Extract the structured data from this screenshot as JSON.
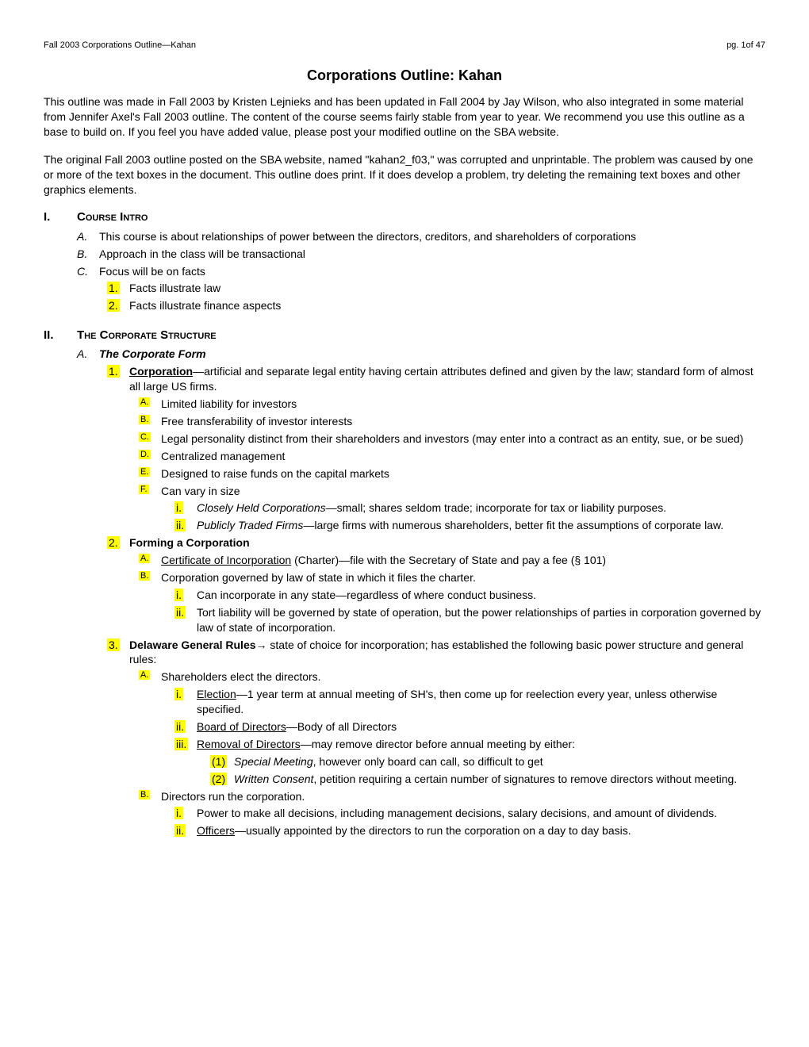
{
  "header": {
    "left": "Fall 2003 Corporations Outline—Kahan",
    "right": "pg. 1of 47"
  },
  "title": "Corporations Outline: Kahan",
  "intro": {
    "p1": "This outline was made in Fall 2003 by Kristen Lejnieks and has been updated in Fall 2004 by Jay Wilson, who also integrated in some material from Jennifer Axel's Fall 2003 outline.  The content of the course seems fairly stable from year to year.  We recommend you use this outline as a base to build on.  If you feel you have added value, please post your modified outline on the SBA website.",
    "p2": "The original Fall 2003 outline posted on the SBA website, named \"kahan2_f03,\" was corrupted and unprintable.  The problem was caused by one or more of the text boxes in the document.  This outline does print.  If it does develop a problem, try deleting the remaining text boxes and other graphics elements."
  },
  "s1": {
    "roman": "I.",
    "title": "Course Intro",
    "a": {
      "m": "A.",
      "t": "This course is about relationships of power between the directors, creditors, and shareholders of corporations"
    },
    "b": {
      "m": "B.",
      "t": "Approach in the class will be transactional"
    },
    "c": {
      "m": "C.",
      "t": "Focus will be on facts"
    },
    "c1": {
      "m": "1.",
      "t": "Facts illustrate law"
    },
    "c2": {
      "m": "2.",
      "t": "Facts illustrate finance aspects"
    }
  },
  "s2": {
    "roman": "II.",
    "title": "The Corporate Structure",
    "a": {
      "m": "A.",
      "t": "The Corporate Form"
    },
    "a1": {
      "m": "1.",
      "lead": "Corporation",
      "rest": "—artificial and separate legal entity having certain attributes defined and given by the law; standard form of almost all large US firms."
    },
    "a1a": {
      "m": "A.",
      "t": "Limited liability for investors"
    },
    "a1b": {
      "m": "B.",
      "t": "Free transferability of investor interests"
    },
    "a1c": {
      "m": "C.",
      "t": "Legal personality distinct from their shareholders and investors (may enter into a contract as an entity, sue, or be sued)"
    },
    "a1d": {
      "m": "D.",
      "t": "Centralized management"
    },
    "a1e": {
      "m": "E.",
      "t": "Designed to raise funds on the capital markets"
    },
    "a1f": {
      "m": "F.",
      "t": "Can vary in size"
    },
    "a1fi": {
      "m": "i.",
      "lead": "Closely Held Corporations",
      "rest": "—small; shares seldom trade; incorporate for tax or liability purposes."
    },
    "a1fii": {
      "m": "ii.",
      "lead": "Publicly Traded Firms",
      "rest": "—large firms with numerous shareholders, better fit the assumptions of corporate law."
    },
    "a2": {
      "m": "2.",
      "t": "Forming a Corporation"
    },
    "a2a": {
      "m": "A.",
      "lead": "Certificate of Incorporation",
      "rest": " (Charter)—file with the Secretary of State and pay a fee (§ 101)"
    },
    "a2b": {
      "m": "B.",
      "t": "Corporation governed by law of state in which it files the charter."
    },
    "a2bi": {
      "m": "i.",
      "t": "Can incorporate in any state—regardless of where conduct business."
    },
    "a2bii": {
      "m": "ii.",
      "t": "Tort liability will be governed by state of operation, but the power relationships of parties in corporation governed by law of state of incorporation."
    },
    "a3": {
      "m": "3.",
      "lead": "Delaware General Rules",
      "arrow": "→",
      "rest": " state of choice for incorporation; has established the following basic power structure and general rules:"
    },
    "a3a": {
      "m": "A.",
      "t": "Shareholders elect the directors."
    },
    "a3ai": {
      "m": "i.",
      "lead": "Election",
      "rest": "—1 year term at annual meeting of SH's, then come up for reelection every year, unless otherwise specified."
    },
    "a3aii": {
      "m": "ii.",
      "lead": "Board of Directors",
      "rest": "—Body of all Directors"
    },
    "a3aiii": {
      "m": "iii.",
      "lead": "Removal of Directors",
      "rest": "—may remove director before annual meeting by either:"
    },
    "a3aiii1": {
      "m": "(1)",
      "lead": "Special Meeting",
      "rest": ", however only board can call, so difficult to get"
    },
    "a3aiii2": {
      "m": "(2)",
      "lead": "Written Consent",
      "rest": ", petition requiring a certain number of signatures to remove directors without meeting."
    },
    "a3b": {
      "m": "B.",
      "t": "Directors run the corporation."
    },
    "a3bi": {
      "m": "i.",
      "t": "Power to make all decisions, including management decisions, salary decisions, and amount of dividends."
    },
    "a3bii": {
      "m": "ii.",
      "lead": "Officers",
      "rest": "—usually appointed by the directors to run the corporation on a day to day basis."
    }
  }
}
